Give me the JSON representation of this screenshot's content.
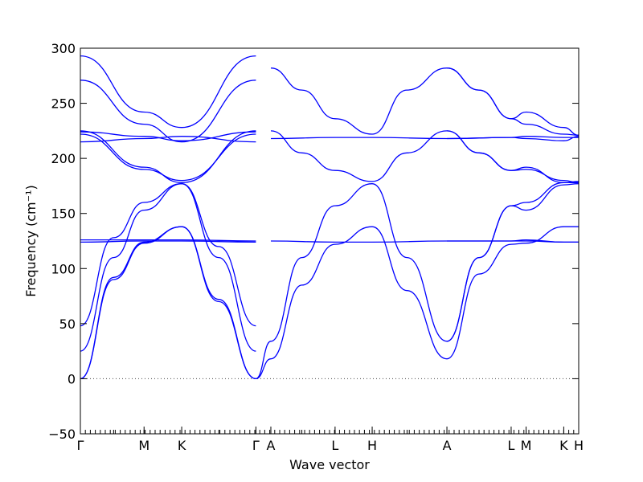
{
  "chart_data": {
    "type": "line",
    "title": "",
    "xlabel": "Wave vector",
    "ylabel": "Frequency (cm⁻¹)",
    "ylim": [
      -50,
      300
    ],
    "yticks": [
      "300",
      "250",
      "200",
      "150",
      "100",
      "50",
      "0",
      "−50"
    ],
    "ytick_values": [
      300,
      250,
      200,
      150,
      100,
      50,
      0,
      -50
    ],
    "xlim": [
      0,
      9
    ],
    "xticks": [
      {
        "label": "Γ",
        "x": 0
      },
      {
        "label": "M",
        "x": 1.15
      },
      {
        "label": "K",
        "x": 1.83
      },
      {
        "label": "Γ",
        "x": 3.17
      },
      {
        "label": "A",
        "x": 3.44
      },
      {
        "label": "L",
        "x": 4.6
      },
      {
        "label": "H",
        "x": 5.27
      },
      {
        "label": "A",
        "x": 6.62
      },
      {
        "label": "L",
        "x": 7.78
      },
      {
        "label": "M",
        "x": 8.05
      },
      {
        "label": "K",
        "x": 8.73
      },
      {
        "label": "H",
        "x": 9.0
      }
    ],
    "zero_line": true,
    "series_color": "#0000ff",
    "series": [
      {
        "x": [
          0,
          0.6,
          1.15,
          1.83,
          2.5,
          3.17
        ],
        "values": [
          0,
          90,
          123,
          138,
          70,
          0
        ]
      },
      {
        "x": [
          0,
          0.6,
          1.15,
          1.83,
          2.5,
          3.17
        ],
        "values": [
          0,
          92,
          124,
          138,
          72,
          0
        ]
      },
      {
        "x": [
          0,
          0.6,
          1.15,
          1.83,
          2.5,
          3.17
        ],
        "values": [
          25,
          110,
          153,
          177,
          110,
          25
        ]
      },
      {
        "x": [
          0,
          0.6,
          1.15,
          1.83,
          2.5,
          3.17
        ],
        "values": [
          48,
          128,
          160,
          177,
          120,
          48
        ]
      },
      {
        "x": [
          0,
          1.15,
          1.83,
          3.17
        ],
        "values": [
          124,
          125,
          125,
          124
        ]
      },
      {
        "x": [
          0,
          1.15,
          1.83,
          3.17
        ],
        "values": [
          126,
          126,
          126,
          125
        ]
      },
      {
        "x": [
          0,
          1.15,
          1.83,
          3.17
        ],
        "values": [
          222,
          190,
          180,
          222
        ]
      },
      {
        "x": [
          0,
          1.15,
          1.83,
          3.17
        ],
        "values": [
          225,
          192,
          178,
          225
        ]
      },
      {
        "x": [
          0,
          1.15,
          1.83,
          3.17
        ],
        "values": [
          215,
          218,
          220,
          215
        ]
      },
      {
        "x": [
          0,
          1.15,
          1.83,
          3.17
        ],
        "values": [
          224,
          220,
          216,
          224
        ]
      },
      {
        "x": [
          0,
          1.15,
          1.83,
          3.17
        ],
        "values": [
          271,
          231,
          215,
          271
        ]
      },
      {
        "x": [
          0,
          1.15,
          1.83,
          3.17
        ],
        "values": [
          293,
          242,
          228,
          293
        ]
      },
      {
        "x": [
          3.17,
          3.44
        ],
        "values": [
          0,
          34
        ]
      },
      {
        "x": [
          3.17,
          3.44
        ],
        "values": [
          0,
          18
        ]
      },
      {
        "x": [
          3.44,
          4.0,
          4.6,
          5.27,
          5.9,
          6.62
        ],
        "values": [
          18,
          85,
          122,
          138,
          80,
          18
        ]
      },
      {
        "x": [
          3.44,
          4.0,
          4.6,
          5.27,
          5.9,
          6.62
        ],
        "values": [
          34,
          110,
          157,
          177,
          110,
          34
        ]
      },
      {
        "x": [
          3.44,
          4.6,
          5.27,
          6.62
        ],
        "values": [
          125,
          124,
          124,
          125
        ]
      },
      {
        "x": [
          3.44,
          4.6,
          5.27,
          6.62
        ],
        "values": [
          218,
          219,
          219,
          218
        ]
      },
      {
        "x": [
          3.44,
          4.0,
          4.6,
          5.27,
          5.9,
          6.62
        ],
        "values": [
          225,
          205,
          189,
          179,
          205,
          225
        ]
      },
      {
        "x": [
          3.44,
          4.0,
          4.6,
          5.27,
          5.9,
          6.62
        ],
        "values": [
          282,
          262,
          236,
          222,
          262,
          282
        ]
      },
      {
        "x": [
          6.62,
          7.2,
          7.78,
          8.05,
          8.73,
          9.0
        ],
        "values": [
          18,
          95,
          122,
          123,
          138,
          138
        ]
      },
      {
        "x": [
          6.62,
          7.2,
          7.78,
          8.05,
          8.73,
          9.0
        ],
        "values": [
          34,
          110,
          157,
          153,
          176,
          177
        ]
      },
      {
        "x": [
          6.62,
          7.2,
          7.78,
          8.05,
          8.73,
          9.0
        ],
        "values": [
          34,
          110,
          157,
          160,
          178,
          179
        ]
      },
      {
        "x": [
          6.62,
          7.78,
          8.05,
          8.73,
          9.0
        ],
        "values": [
          125,
          125,
          125,
          124,
          124
        ]
      },
      {
        "x": [
          6.62,
          7.78,
          8.05,
          8.73,
          9.0
        ],
        "values": [
          125,
          125,
          126,
          124,
          124
        ]
      },
      {
        "x": [
          6.62,
          7.78,
          8.05,
          8.73,
          9.0
        ],
        "values": [
          218,
          219,
          218,
          216,
          220
        ]
      },
      {
        "x": [
          6.62,
          7.78,
          8.05,
          8.73,
          9.0
        ],
        "values": [
          218,
          219,
          220,
          219,
          219
        ]
      },
      {
        "x": [
          6.62,
          7.2,
          7.78,
          8.05,
          8.73,
          9.0
        ],
        "values": [
          225,
          205,
          189,
          190,
          180,
          178
        ]
      },
      {
        "x": [
          6.62,
          7.2,
          7.78,
          8.05,
          8.73,
          9.0
        ],
        "values": [
          225,
          205,
          189,
          192,
          178,
          178
        ]
      },
      {
        "x": [
          6.62,
          7.2,
          7.78,
          8.05,
          8.73,
          9.0
        ],
        "values": [
          282,
          262,
          236,
          231,
          222,
          221
        ]
      },
      {
        "x": [
          6.62,
          7.2,
          7.78,
          8.05,
          8.73,
          9.0
        ],
        "values": [
          282,
          262,
          236,
          242,
          228,
          221
        ]
      }
    ]
  }
}
